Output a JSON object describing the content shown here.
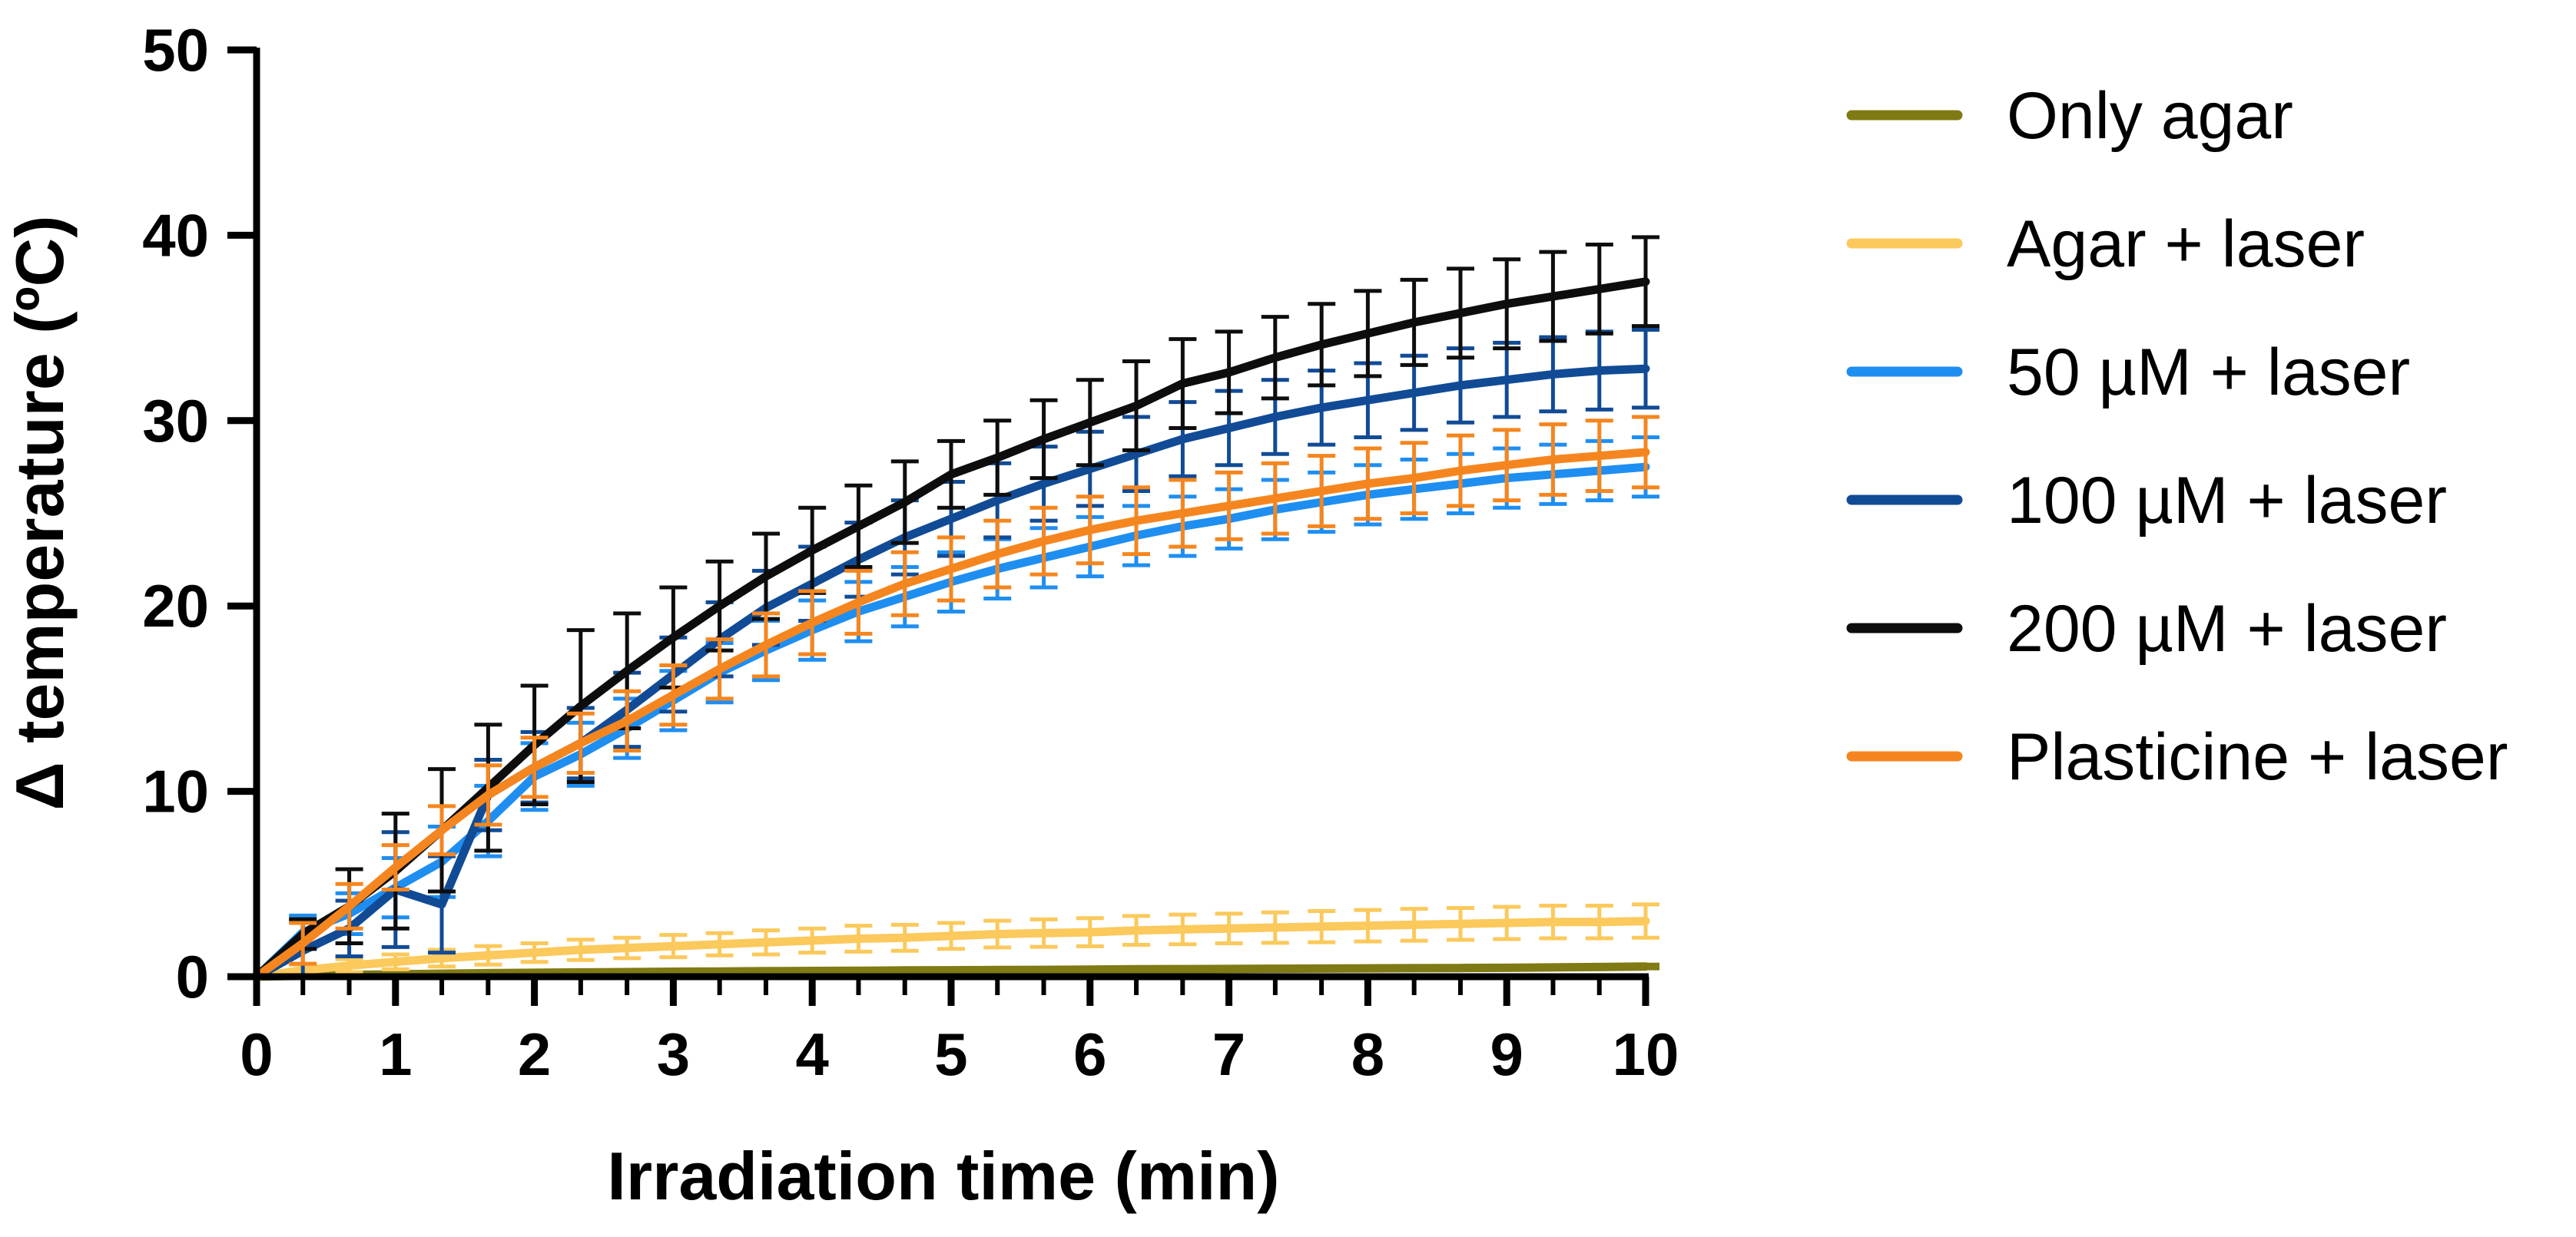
{
  "chart_data": {
    "type": "line",
    "title": "",
    "xlabel": "Irradiation time (min)",
    "ylabel": "Δ temperature (ºC)",
    "xlim": [
      0,
      10
    ],
    "ylim": [
      0,
      50
    ],
    "x_ticks": [
      "0",
      "1",
      "2",
      "3",
      "4",
      "5",
      "6",
      "7",
      "8",
      "9",
      "10"
    ],
    "y_ticks": [
      "0",
      "10",
      "20",
      "30",
      "40",
      "50"
    ],
    "grid": false,
    "legend_position": "right",
    "x": [
      0,
      0.333,
      0.667,
      1,
      1.333,
      1.667,
      2,
      2.333,
      2.667,
      3,
      3.333,
      3.667,
      4,
      4.333,
      4.667,
      5,
      5.333,
      5.667,
      6,
      6.333,
      6.667,
      7,
      7.333,
      7.667,
      8,
      8.333,
      8.667,
      9,
      9.333,
      9.667,
      10
    ],
    "series": [
      {
        "name": "Only agar",
        "color": "#807a14",
        "values": [
          0,
          0.05,
          0.1,
          0.13,
          0.16,
          0.19,
          0.21,
          0.23,
          0.25,
          0.27,
          0.28,
          0.3,
          0.31,
          0.32,
          0.34,
          0.35,
          0.36,
          0.37,
          0.38,
          0.4,
          0.41,
          0.42,
          0.43,
          0.44,
          0.45,
          0.46,
          0.47,
          0.48,
          0.5,
          0.52,
          0.55
        ],
        "errors": [
          0,
          0.05,
          0.05,
          0.05,
          0.05,
          0.05,
          0.05,
          0.06,
          0.06,
          0.06,
          0.06,
          0.06,
          0.07,
          0.07,
          0.07,
          0.07,
          0.07,
          0.08,
          0.08,
          0.08,
          0.08,
          0.08,
          0.08,
          0.09,
          0.09,
          0.09,
          0.09,
          0.1,
          0.1,
          0.1,
          0.1
        ]
      },
      {
        "name": "Agar + laser",
        "color": "#fbc95c",
        "values": [
          0,
          0.35,
          0.6,
          0.8,
          1.0,
          1.15,
          1.3,
          1.45,
          1.55,
          1.65,
          1.75,
          1.85,
          1.95,
          2.05,
          2.1,
          2.2,
          2.3,
          2.35,
          2.4,
          2.5,
          2.55,
          2.6,
          2.65,
          2.7,
          2.75,
          2.8,
          2.85,
          2.9,
          2.95,
          2.95,
          3.0
        ],
        "errors": [
          0,
          0.3,
          0.35,
          0.4,
          0.45,
          0.5,
          0.5,
          0.55,
          0.55,
          0.6,
          0.6,
          0.65,
          0.65,
          0.7,
          0.7,
          0.7,
          0.72,
          0.74,
          0.76,
          0.78,
          0.8,
          0.8,
          0.82,
          0.84,
          0.85,
          0.86,
          0.86,
          0.87,
          0.88,
          0.88,
          0.9
        ]
      },
      {
        "name": "50 µM + laser",
        "color": "#1f8ef1",
        "values": [
          0,
          2.4,
          3.4,
          4.8,
          6.2,
          8.4,
          10.8,
          12.0,
          13.4,
          14.9,
          16.4,
          17.6,
          18.7,
          19.7,
          20.5,
          21.3,
          22.0,
          22.6,
          23.2,
          23.8,
          24.3,
          24.7,
          25.2,
          25.6,
          26.0,
          26.3,
          26.6,
          26.9,
          27.1,
          27.3,
          27.5
        ],
        "errors": [
          0,
          0.9,
          1.1,
          1.6,
          1.9,
          1.9,
          1.8,
          1.7,
          1.6,
          1.6,
          1.6,
          1.6,
          1.6,
          1.6,
          1.6,
          1.6,
          1.6,
          1.6,
          1.6,
          1.6,
          1.6,
          1.6,
          1.6,
          1.6,
          1.6,
          1.6,
          1.6,
          1.6,
          1.6,
          1.6,
          1.6
        ]
      },
      {
        "name": "100 µM + laser",
        "color": "#114b95",
        "values": [
          0,
          1.4,
          2.6,
          4.7,
          3.9,
          9.8,
          11.3,
          12.6,
          14.4,
          16.3,
          18.2,
          19.9,
          21.2,
          22.5,
          23.7,
          24.7,
          25.7,
          26.6,
          27.4,
          28.2,
          29.0,
          29.6,
          30.2,
          30.7,
          31.1,
          31.5,
          31.9,
          32.2,
          32.5,
          32.7,
          32.8
        ],
        "errors": [
          0,
          1.6,
          1.5,
          3.1,
          2.6,
          1.9,
          1.9,
          1.9,
          2.0,
          2.0,
          2.0,
          2.0,
          2.0,
          2.0,
          2.0,
          2.0,
          2.0,
          2.0,
          2.0,
          2.0,
          2.0,
          2.0,
          2.0,
          2.0,
          2.0,
          2.0,
          2.0,
          2.0,
          2.0,
          2.1,
          2.1
        ]
      },
      {
        "name": "200 µM + laser",
        "color": "#0d0d0d",
        "values": [
          0,
          2.3,
          3.8,
          5.7,
          7.9,
          10.2,
          12.5,
          14.6,
          16.5,
          18.3,
          20.0,
          21.6,
          23.0,
          24.3,
          25.6,
          27.1,
          28.0,
          29.0,
          29.9,
          30.8,
          32.0,
          32.6,
          33.4,
          34.1,
          34.7,
          35.3,
          35.8,
          36.3,
          36.7,
          37.1,
          37.5
        ],
        "errors": [
          0,
          0.8,
          2.0,
          3.1,
          3.3,
          3.4,
          3.2,
          4.1,
          3.1,
          2.7,
          2.4,
          2.3,
          2.3,
          2.2,
          2.2,
          1.8,
          2.0,
          2.1,
          2.3,
          2.4,
          2.4,
          2.2,
          2.2,
          2.2,
          2.3,
          2.3,
          2.4,
          2.4,
          2.4,
          2.4,
          2.4
        ]
      },
      {
        "name": "Plasticine + laser",
        "color": "#f5861f",
        "values": [
          0,
          1.8,
          3.8,
          5.9,
          7.9,
          9.8,
          11.3,
          12.6,
          13.8,
          15.2,
          16.6,
          17.9,
          19.1,
          20.2,
          21.2,
          22.0,
          22.8,
          23.5,
          24.1,
          24.6,
          25.0,
          25.4,
          25.8,
          26.2,
          26.6,
          26.9,
          27.3,
          27.6,
          27.9,
          28.1,
          28.3
        ],
        "errors": [
          0,
          1.1,
          1.2,
          1.2,
          1.3,
          1.6,
          1.6,
          1.6,
          1.6,
          1.6,
          1.6,
          1.7,
          1.7,
          1.7,
          1.7,
          1.7,
          1.8,
          1.8,
          1.8,
          1.8,
          1.8,
          1.8,
          1.9,
          1.9,
          1.9,
          1.9,
          1.9,
          1.9,
          1.9,
          1.9,
          1.9
        ]
      }
    ]
  }
}
